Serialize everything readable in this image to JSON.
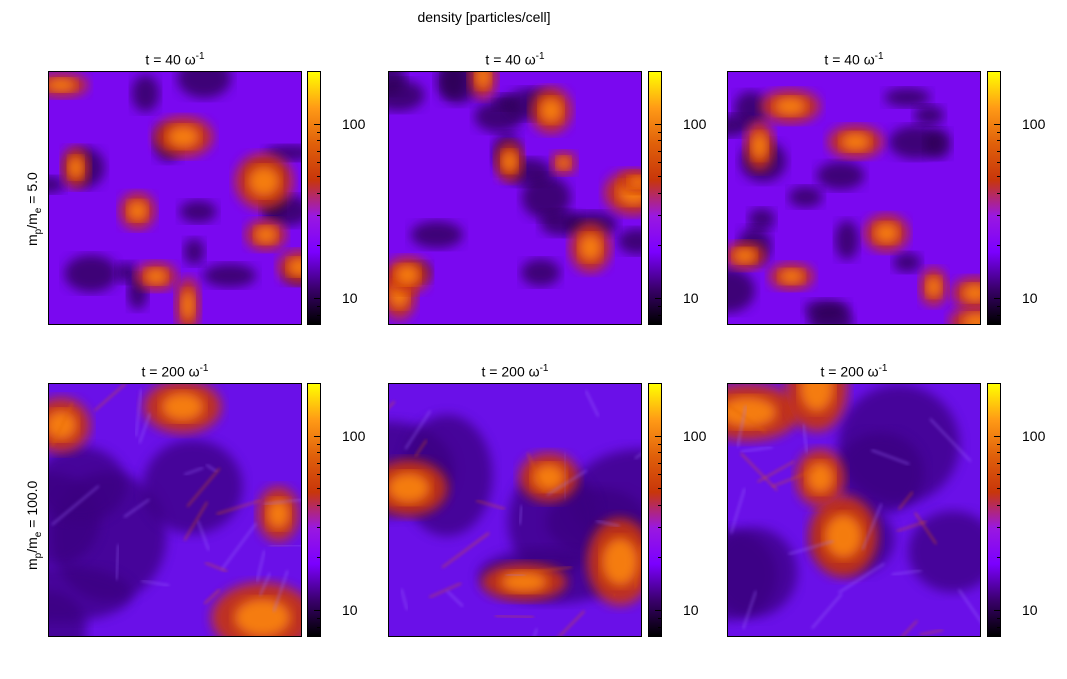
{
  "chart_data": {
    "type": "heatmap",
    "title": "density [particles/cell]",
    "colormap": [
      "#000000",
      "#3b006e",
      "#7b00ff",
      "#9a18e0",
      "#c8360a",
      "#e0600a",
      "#ff9a16",
      "#ffff00"
    ],
    "color_scale": "log",
    "colorbar_range": [
      7,
      200
    ],
    "colorbar_ticks": [
      "100",
      "10"
    ],
    "rows": [
      {
        "label_main": "m",
        "label_sub1": "p",
        "label_mid": "/m",
        "label_sub2": "e",
        "label_end": " = 5.0"
      },
      {
        "label_main": "m",
        "label_sub1": "p",
        "label_mid": "/m",
        "label_sub2": "e",
        "label_end": " = 100.0"
      }
    ],
    "panels": [
      {
        "row": 0,
        "col": 0,
        "title": "t = 40 ω",
        "title_sup": "-1",
        "seed": 11
      },
      {
        "row": 0,
        "col": 1,
        "title": "t = 40 ω",
        "title_sup": "-1",
        "seed": 23
      },
      {
        "row": 0,
        "col": 2,
        "title": "t = 40 ω",
        "title_sup": "-1",
        "seed": 37
      },
      {
        "row": 1,
        "col": 0,
        "title": "t = 200 ω",
        "title_sup": "-1",
        "seed": 53
      },
      {
        "row": 1,
        "col": 1,
        "title": "t = 200 ω",
        "title_sup": "-1",
        "seed": 71
      },
      {
        "row": 1,
        "col": 2,
        "title": "t = 200 ω",
        "title_sup": "-1",
        "seed": 97
      }
    ]
  }
}
